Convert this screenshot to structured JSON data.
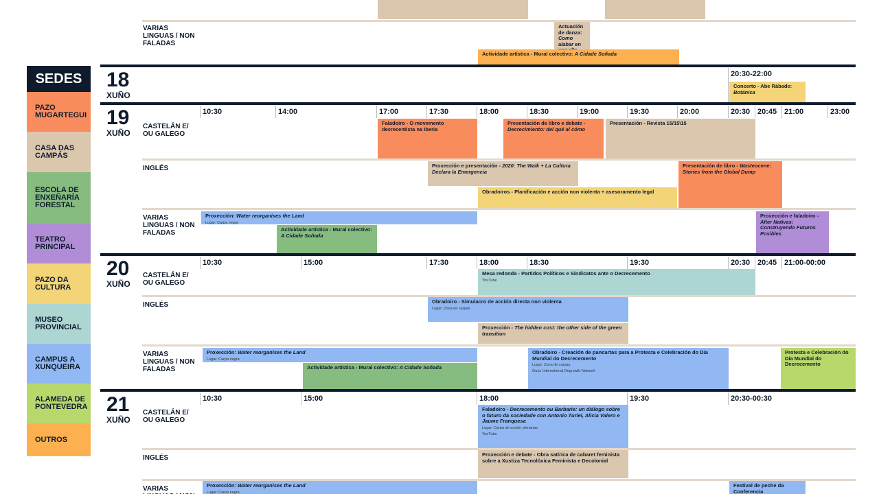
{
  "legend": {
    "title": "SEDES",
    "items": [
      {
        "label": "PAZO MUGARTEGUI",
        "color": "#f98c5d"
      },
      {
        "label": "CASA DAS CAMPÁS",
        "color": "#dbc6ae"
      },
      {
        "label": "ESCOLA DE ENXEÑARÍA FORESTAL",
        "color": "#87bc80"
      },
      {
        "label": "TEATRO PRINCIPAL",
        "color": "#b08dd6"
      },
      {
        "label": "PAZO DA CULTURA",
        "color": "#f3d477"
      },
      {
        "label": "MUSEO PROVINCIAL",
        "color": "#add6d3"
      },
      {
        "label": "CAMPUS A XUNQUEIRA",
        "color": "#91b8f2"
      },
      {
        "label": "ALAMEDA DE PONTEVEDRA",
        "color": "#b8d86c"
      },
      {
        "label": "OUTROS",
        "color": "#fcb050"
      }
    ]
  },
  "previous_section": {
    "rows": [
      {
        "language": "VARIAS LINGUAS / NON FALADAS",
        "events": [
          {
            "title": "Actuación de danza:",
            "subtitle": "Como alabar en voz alta",
            "color": "#dbc6ae"
          },
          {
            "title": "Actividade artística - Mural colectivo:",
            "subtitle": "A Cidade Soñada",
            "color": "#fcb050"
          }
        ]
      }
    ]
  },
  "days": [
    {
      "day": "18",
      "month": "XUÑO",
      "times": [
        "20:30-22:00"
      ],
      "rows": [
        {
          "events": [
            {
              "title": "Concerto - Abe Rábade:",
              "subtitle": "Botánica",
              "color": "#f3d477"
            }
          ]
        }
      ]
    },
    {
      "day": "19",
      "month": "XUÑO",
      "times": [
        "10:30",
        "14:00",
        "17:00",
        "17:30",
        "18:00",
        "18:30",
        "19:00",
        "19:30",
        "20:00",
        "20:30",
        "20:45",
        "21:00",
        "23:00"
      ],
      "rows": [
        {
          "language": "CASTELÁN E/ OU GALEGO",
          "events": [
            {
              "title": "Faladoiro - O movemento decrecentista na Iberia",
              "color": "#f98c5d"
            },
            {
              "title": "Presentación de libro e debate -",
              "subtitle": "Decrecimiento: del qué al cómo",
              "color": "#f98c5d"
            },
            {
              "title": "Presentación - Revista 15/15\\15",
              "color": "#dbc6ae"
            }
          ]
        },
        {
          "language": "INGLÉS",
          "events": [
            {
              "title": "Proxección e presentación -",
              "subtitle": "2020: The Walk + La Cultura Declara la Emergencia",
              "color": "#dbc6ae"
            },
            {
              "title": "Presentación de libro -",
              "subtitle": "Wasteocene: Stories from the Global Dump",
              "color": "#f98c5d"
            },
            {
              "title": "Obradoiros - Planificación e acción non violenta + asesoramento legal",
              "color": "#f3d477"
            }
          ]
        },
        {
          "language": "VARIAS LINGUAS / NON FALADAS",
          "events": [
            {
              "title": "Proxección:",
              "subtitle": "Water reorganises the Land",
              "details": [
                "Lugar: Carpa negra"
              ],
              "color": "#91b8f2"
            },
            {
              "title": "Actividade artística - Mural colectivo:",
              "subtitle": "A Cidade Soñada",
              "color": "#87bc80"
            },
            {
              "title": "Proxección e faladoiro -",
              "subtitle": "Alter Nativas: Construyendo Futuros Posibles",
              "color": "#b08dd6"
            }
          ]
        }
      ]
    },
    {
      "day": "20",
      "month": "XUÑO",
      "times": [
        "10:30",
        "15:00",
        "17:30",
        "18:00",
        "18:30",
        "19:30",
        "20:30",
        "20:45",
        "21:00-00:00"
      ],
      "rows": [
        {
          "language": "CASTELÁN E/ OU GALEGO",
          "events": [
            {
              "title": "Mesa redonda - Partidos Políticos e Sindicatos ante o Decrecemento",
              "details": [
                "YouTube"
              ],
              "color": "#add6d3"
            }
          ]
        },
        {
          "language": "INGLÉS",
          "events": [
            {
              "title": "Obradoiro - Simulacro de acción directa non violenta",
              "details": [
                "Lugar: Zona de carpas"
              ],
              "color": "#91b8f2"
            },
            {
              "title": "Proxección -",
              "subtitle": "The hidden cost: the other side of the green transition",
              "color": "#dbc6ae"
            }
          ]
        },
        {
          "language": "VARIAS LINGUAS / NON FALADAS",
          "events": [
            {
              "title": "Proxección:",
              "subtitle": "Water reorganises the Land",
              "details": [
                "Lugar: Carpa negra"
              ],
              "color": "#91b8f2"
            },
            {
              "title": "Actividade artística - Mural colectivo:",
              "subtitle": "A Cidade Soñada",
              "color": "#87bc80"
            },
            {
              "title": "Obradoiro - Creación de pancartas para a Protesta e Celebración do Día Mundial do Decrecemento",
              "details": [
                "Lugar: Zona de carpas",
                "Guía: International Degrowth Network"
              ],
              "color": "#91b8f2"
            },
            {
              "title": "Protesta e Celebración do Día Mundial do Decrecemento",
              "color": "#b8d86c"
            }
          ]
        }
      ]
    },
    {
      "day": "21",
      "month": "XUÑO",
      "times": [
        "10:30",
        "15:00",
        "18:00",
        "19:30",
        "20:30-00:30"
      ],
      "rows": [
        {
          "language": "CASTELÁN E/ OU GALEGO",
          "events": [
            {
              "title": "Faladoiro -",
              "subtitle": "Decrecemento ou Barbarie: un diálogo sobre o futuro da sociedade con Antonio Turiel, Alicia Valero e Jaume Franquesa",
              "details": [
                "Lugar: Carpa de acción plenarias",
                "YouTube"
              ],
              "color": "#91b8f2"
            }
          ]
        },
        {
          "language": "INGLÉS",
          "events": [
            {
              "title": "Proxección e debate - Obra satírica de cabaret feminista sobre a Xustiza Tecnolóxica Feminista e Decolonial",
              "color": "#dbc6ae"
            }
          ]
        },
        {
          "language": "VARIAS LINGUAS / NON FALADAS",
          "events": [
            {
              "title": "Proxección:",
              "subtitle": "Water reorganises the Land",
              "details": [
                "Lugar: Carpa negra"
              ],
              "color": "#91b8f2"
            },
            {
              "title": "Festival de peche da Conferencia",
              "color": "#91b8f2"
            }
          ]
        }
      ]
    }
  ]
}
